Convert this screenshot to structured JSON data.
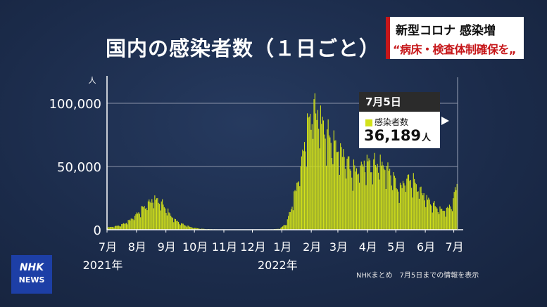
{
  "headline": {
    "line1": "新型コロナ 感染増",
    "line2": "“病床・検査体制確保を„"
  },
  "logo": {
    "text": "NHK",
    "sub": "NEWS"
  },
  "source_note": "NHKまとめ　7月5日までの情報を表示",
  "tooltip": {
    "date": "7月5日",
    "series": "感染者数",
    "value": "36,189",
    "unit": "人"
  },
  "colors": {
    "background": "#1c2c4c",
    "bar": "#d3e21a",
    "headline_accent": "#c6171a",
    "logo": "#1d3fa6"
  },
  "chart_data": {
    "type": "bar",
    "title": "国内の感染者数（１日ごと）",
    "ylabel": "人",
    "ylim": [
      0,
      110000
    ],
    "yticks": [
      0,
      50000,
      100000
    ],
    "ytick_labels": [
      "0",
      "50,000",
      "100,000"
    ],
    "grid": true,
    "x_start": "2021-07-01",
    "x_end": "2022-07-05",
    "xtick_labels": [
      "7月",
      "8月",
      "9月",
      "10月",
      "11月",
      "12月",
      "1月",
      "2月",
      "3月",
      "4月",
      "5月",
      "6月",
      "7月"
    ],
    "year_labels": [
      "2021年",
      "2022年"
    ],
    "series": [
      {
        "name": "感染者数",
        "x": [
          "2021-07-01",
          "2021-07-08",
          "2021-07-15",
          "2021-07-22",
          "2021-07-29",
          "2021-08-05",
          "2021-08-12",
          "2021-08-19",
          "2021-08-26",
          "2021-09-02",
          "2021-09-09",
          "2021-09-16",
          "2021-09-23",
          "2021-09-30",
          "2021-10-07",
          "2021-10-14",
          "2021-10-21",
          "2021-10-28",
          "2021-11-04",
          "2021-11-11",
          "2021-11-18",
          "2021-11-25",
          "2021-12-02",
          "2021-12-09",
          "2021-12-16",
          "2021-12-23",
          "2021-12-30",
          "2022-01-06",
          "2022-01-13",
          "2022-01-20",
          "2022-01-27",
          "2022-02-03",
          "2022-02-10",
          "2022-02-17",
          "2022-02-24",
          "2022-03-03",
          "2022-03-10",
          "2022-03-17",
          "2022-03-24",
          "2022-03-31",
          "2022-04-07",
          "2022-04-14",
          "2022-04-21",
          "2022-04-28",
          "2022-05-05",
          "2022-05-12",
          "2022-05-19",
          "2022-05-26",
          "2022-06-02",
          "2022-06-09",
          "2022-06-16",
          "2022-06-23",
          "2022-06-30",
          "2022-07-05"
        ],
        "values": [
          1800,
          2500,
          3500,
          6000,
          10000,
          15000,
          20000,
          24000,
          22000,
          15000,
          8500,
          5000,
          3000,
          1500,
          800,
          500,
          350,
          250,
          200,
          180,
          150,
          130,
          130,
          150,
          200,
          400,
          800,
          5000,
          22000,
          45000,
          75000,
          95000,
          88000,
          75000,
          68000,
          62000,
          55000,
          45000,
          48000,
          52000,
          50000,
          52000,
          48000,
          42000,
          30000,
          40000,
          38000,
          32000,
          25000,
          20000,
          16000,
          15000,
          20000,
          36189
        ]
      }
    ]
  }
}
